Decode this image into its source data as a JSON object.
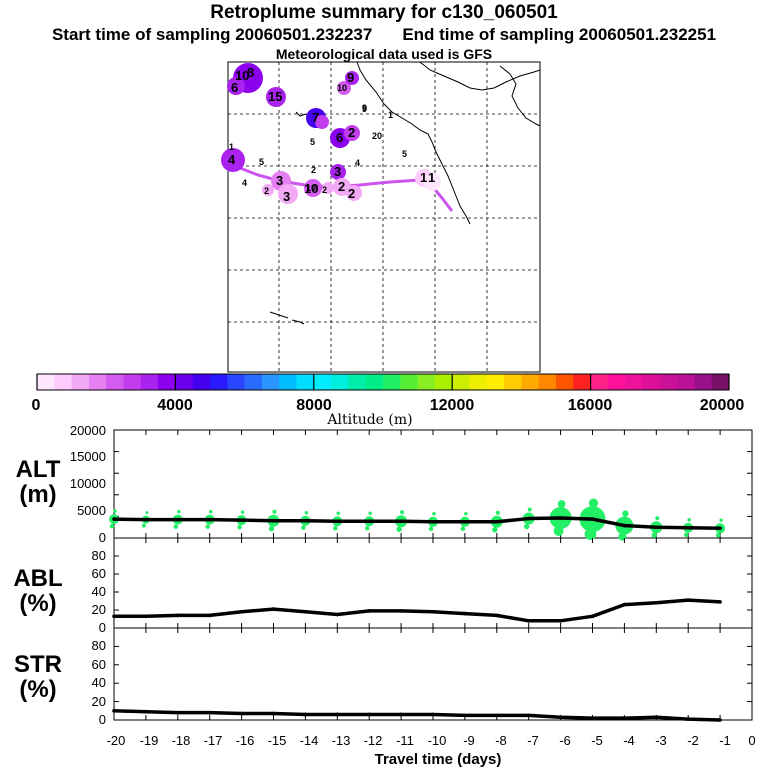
{
  "header": {
    "title": "Retroplume summary for c130_060501",
    "start_sampling": "Start time of sampling 20060501.232237",
    "end_sampling": "End time of sampling 20060501.232251",
    "met_data": "Meteorological data used is GFS"
  },
  "colors": {
    "trajectory": "#cc55ee",
    "series_green": "#22ee66",
    "line": "#000000"
  },
  "chart_data": [
    {
      "type": "map",
      "title": "Retroplume cluster positions",
      "cluster_labels": [
        "10",
        "8",
        "6",
        "15",
        "10",
        "9",
        "9",
        "7",
        "6",
        "2",
        "20",
        "5",
        "4",
        "1",
        "3",
        "2",
        "1",
        "4",
        "2",
        "3",
        "5",
        "10",
        "3",
        "2",
        "2",
        "1",
        "1"
      ],
      "small_labels": [
        "5",
        "10",
        "2",
        "9",
        "4"
      ]
    },
    {
      "type": "colorbar",
      "xlabel": "Altitude (m)",
      "range": [
        0,
        20000
      ],
      "tick_labels": [
        "0",
        "4000",
        "8000",
        "12000",
        "16000",
        "20000"
      ],
      "colors": [
        "#ffe6ff",
        "#ffccff",
        "#f2aaf7",
        "#e680f2",
        "#d55cf0",
        "#c23dee",
        "#aa22ee",
        "#8c00ee",
        "#6a00ee",
        "#4500ee",
        "#2a1aff",
        "#2a45ff",
        "#2a6aff",
        "#2a95ff",
        "#00bbff",
        "#00ddff",
        "#00eeff",
        "#00eedd",
        "#00eeaa",
        "#00ee88",
        "#22ee66",
        "#55ee33",
        "#88ee22",
        "#aaee00",
        "#ccee00",
        "#eeee00",
        "#ffee00",
        "#ffcc00",
        "#ffaa00",
        "#ff8800",
        "#ff5500",
        "#ff2222",
        "#ff2288",
        "#ff1199",
        "#ee1199",
        "#dd1199",
        "#cc1199",
        "#bb1199",
        "#991188",
        "#771166"
      ]
    },
    {
      "type": "line",
      "ylabel": "ALT",
      "yunit": "(m)",
      "ylim": [
        0,
        20000
      ],
      "y_ticks": [
        "0",
        "5000",
        "10000",
        "15000",
        "20000"
      ],
      "x": [
        -20,
        -19,
        -18,
        -17,
        -16,
        -15,
        -14,
        -13,
        -12,
        -11,
        -10,
        -9,
        -8,
        -7,
        -6,
        -5,
        -4,
        -3,
        -2,
        -1
      ],
      "values": [
        3500,
        3400,
        3400,
        3400,
        3300,
        3200,
        3200,
        3100,
        3100,
        3100,
        3000,
        3000,
        3000,
        3600,
        3700,
        3500,
        2300,
        2000,
        1900,
        1800
      ],
      "blob_sizes": [
        5,
        4,
        5,
        5,
        5,
        6,
        5,
        5,
        5,
        6,
        5,
        5,
        6,
        6,
        11,
        13,
        9,
        6,
        5,
        5
      ]
    },
    {
      "type": "line",
      "ylabel": "ABL",
      "yunit": "(%)",
      "ylim": [
        0,
        100
      ],
      "y_ticks": [
        "0",
        "20",
        "40",
        "60",
        "80"
      ],
      "x": [
        -20,
        -19,
        -18,
        -17,
        -16,
        -15,
        -14,
        -13,
        -12,
        -11,
        -10,
        -9,
        -8,
        -7,
        -6,
        -5,
        -4,
        -3,
        -2,
        -1
      ],
      "values": [
        13,
        13,
        14,
        14,
        18,
        21,
        18,
        15,
        19,
        19,
        18,
        16,
        14,
        8,
        8,
        13,
        26,
        28,
        31,
        29
      ]
    },
    {
      "type": "line",
      "ylabel": "STR",
      "yunit": "(%)",
      "ylim": [
        0,
        100
      ],
      "y_ticks": [
        "0",
        "20",
        "40",
        "60",
        "80"
      ],
      "x": [
        -20,
        -19,
        -18,
        -17,
        -16,
        -15,
        -14,
        -13,
        -12,
        -11,
        -10,
        -9,
        -8,
        -7,
        -6,
        -5,
        -4,
        -3,
        -2,
        -1
      ],
      "values": [
        10,
        9,
        8,
        8,
        7,
        7,
        6,
        6,
        6,
        6,
        6,
        5,
        5,
        5,
        3,
        2,
        2,
        3,
        1,
        0
      ]
    },
    {
      "type": "axis",
      "xlabel": "Travel time (days)",
      "x_ticks": [
        "-20",
        "-19",
        "-18",
        "-17",
        "-16",
        "-15",
        "-14",
        "-13",
        "-12",
        "-11",
        "-10",
        "-9",
        "-8",
        "-7",
        "-6",
        "-5",
        "-4",
        "-3",
        "-2",
        "-1",
        "0"
      ]
    }
  ]
}
